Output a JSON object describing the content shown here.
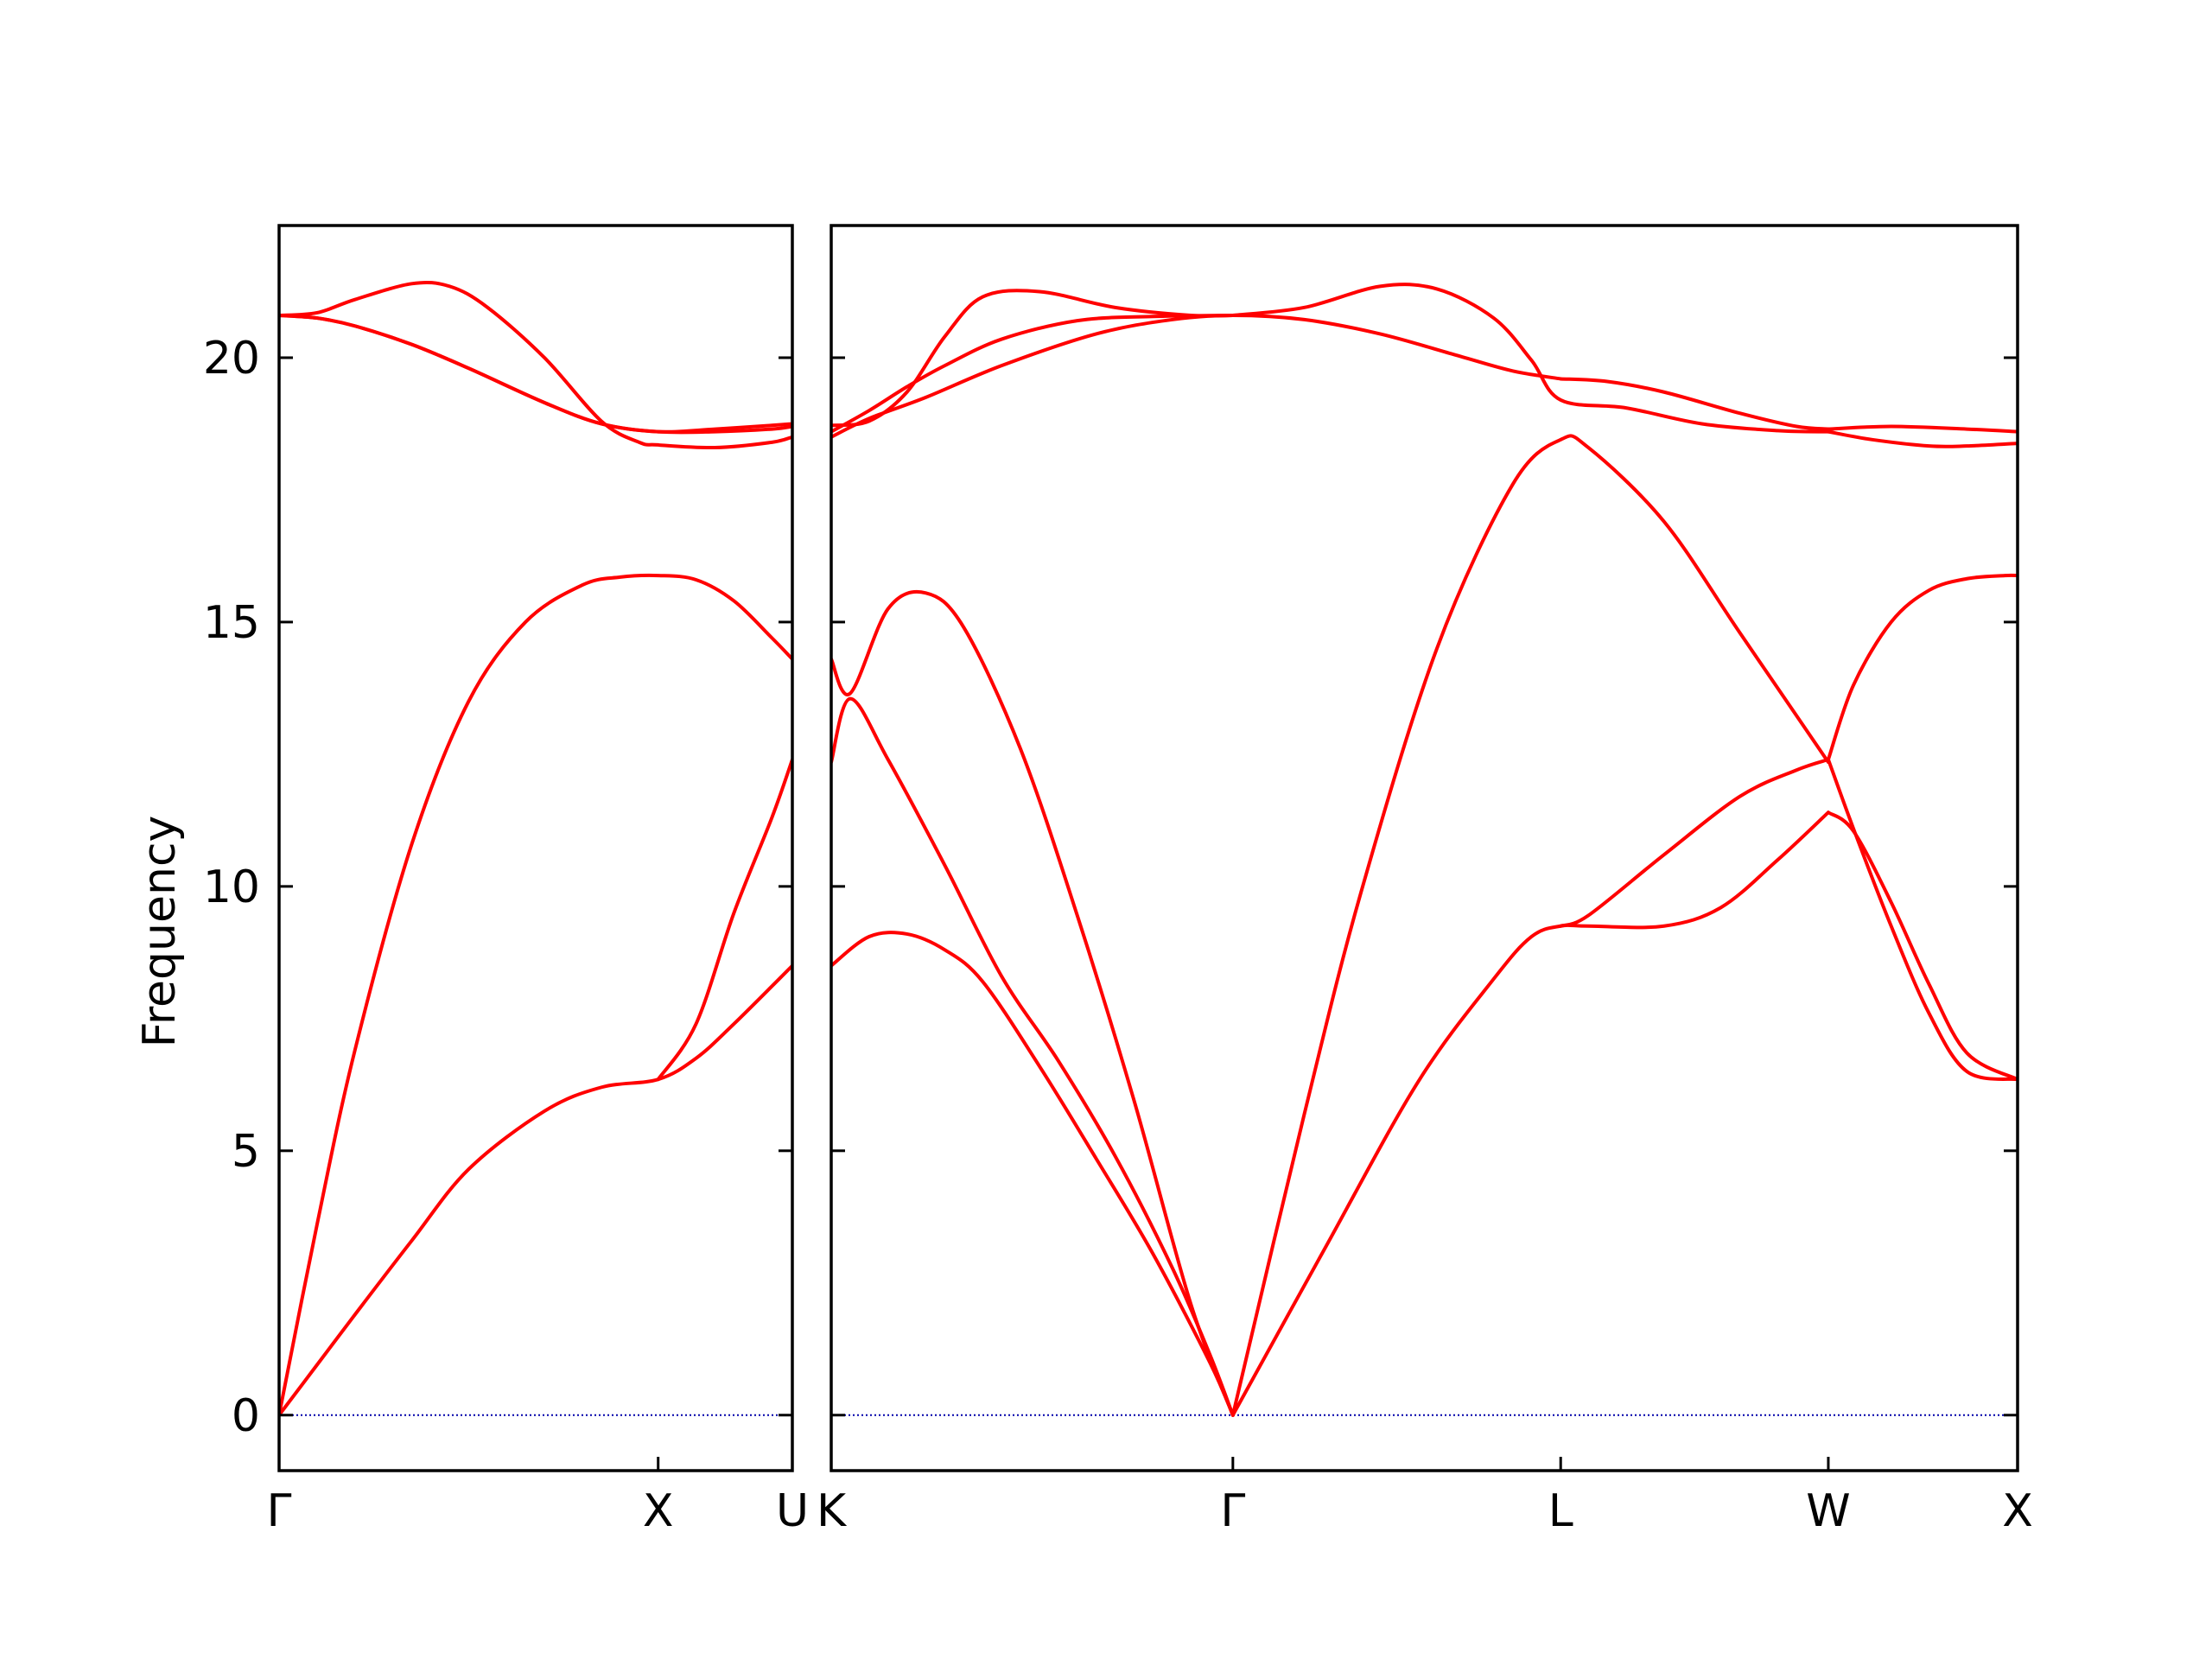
{
  "chart_data": {
    "type": "line",
    "ylabel": "Frequency",
    "ylim": [
      -1.05,
      22.5
    ],
    "yticks": [
      0,
      5,
      10,
      15,
      20
    ],
    "grid": false,
    "zero_line_color": "#0000aa",
    "series_color": "#ff0000",
    "panels": [
      {
        "xticks": [
          {
            "x": 0.0,
            "label": "Γ"
          },
          {
            "x": 1.0,
            "label": "X"
          },
          {
            "x": 1.354,
            "label": "U"
          }
        ],
        "xlim": [
          0.0,
          1.354
        ],
        "bands": [
          {
            "x": [
              0,
              0.1,
              0.2,
              0.35,
              0.5,
              0.7,
              0.85,
              1.0,
              1.1,
              1.2,
              1.354
            ],
            "y": [
              0,
              0.95,
              1.9,
              3.3,
              4.65,
              5.75,
              6.2,
              6.35,
              6.75,
              7.4,
              8.5
            ]
          },
          {
            "x": [
              0,
              0.1,
              0.2,
              0.35,
              0.5,
              0.65,
              0.8,
              0.9,
              1.0,
              1.1,
              1.2,
              1.3,
              1.354
            ],
            "y": [
              0,
              3.6,
              6.9,
              10.8,
              13.5,
              15.0,
              15.7,
              15.85,
              15.88,
              15.8,
              15.4,
              14.7,
              14.3
            ]
          },
          {
            "x": [
              1.0,
              1.1,
              1.2,
              1.3,
              1.354
            ],
            "y": [
              6.35,
              7.4,
              9.5,
              11.3,
              12.4
            ]
          },
          {
            "x": [
              0,
              0.1,
              0.2,
              0.35,
              0.5,
              0.7,
              0.85,
              1.0,
              1.15,
              1.3,
              1.354
            ],
            "y": [
              20.8,
              20.75,
              20.6,
              20.25,
              19.8,
              19.15,
              18.75,
              18.6,
              18.6,
              18.65,
              18.7
            ]
          },
          {
            "x": [
              0,
              0.1,
              0.2,
              0.35,
              0.45,
              0.55,
              0.7,
              0.85,
              0.95,
              1.0,
              1.15,
              1.3,
              1.354
            ],
            "y": [
              20.8,
              20.85,
              21.1,
              21.4,
              21.35,
              20.95,
              20.0,
              18.8,
              18.4,
              18.35,
              18.3,
              18.4,
              18.5
            ]
          },
          {
            "x": [
              0,
              0.1,
              0.2,
              0.35,
              0.5,
              0.7,
              0.85,
              1.0,
              1.15,
              1.3,
              1.354
            ],
            "y": [
              20.8,
              20.75,
              20.6,
              20.25,
              19.8,
              19.15,
              18.75,
              18.6,
              18.65,
              18.72,
              18.75
            ]
          }
        ]
      },
      {
        "xticks": [
          {
            "x": 0.0,
            "label": "K"
          },
          {
            "x": 1.061,
            "label": "Γ"
          },
          {
            "x": 1.927,
            "label": "L"
          },
          {
            "x": 2.634,
            "label": "W"
          },
          {
            "x": 3.134,
            "label": "X"
          }
        ],
        "xlim": [
          0.0,
          3.134
        ],
        "bands": [
          {
            "x": [
              0,
              0.1,
              0.2,
              0.3,
              0.4,
              0.55,
              0.7,
              0.85,
              1.0,
              1.061
            ],
            "y": [
              8.5,
              9.05,
              9.1,
              8.8,
              8.2,
              6.6,
              4.85,
              3.05,
              1.0,
              0
            ]
          },
          {
            "x": [
              0,
              0.05,
              0.15,
              0.3,
              0.45,
              0.6,
              0.75,
              0.9,
              1.0,
              1.061
            ],
            "y": [
              12.35,
              13.55,
              12.4,
              10.4,
              8.3,
              6.7,
              4.9,
              2.8,
              1.15,
              0
            ]
          },
          {
            "x": [
              0,
              0.05,
              0.15,
              0.25,
              0.35,
              0.5,
              0.65,
              0.8,
              0.95,
              1.061
            ],
            "y": [
              14.3,
              13.65,
              15.25,
              15.55,
              14.9,
              12.6,
              9.45,
              5.95,
              2.1,
              0
            ]
          },
          {
            "x": [
              1.061,
              1.3,
              1.55,
              1.75,
              1.85,
              1.927,
              2.0,
              2.2,
              2.35,
              2.5,
              2.634
            ],
            "y": [
              0,
              3.1,
              6.3,
              8.25,
              9.05,
              9.25,
              9.25,
              9.25,
              9.6,
              10.5,
              11.4
            ]
          },
          {
            "x": [
              1.061,
              1.25,
              1.4,
              1.6,
              1.8,
              1.927,
              2.0,
              2.2,
              2.4,
              2.634
            ],
            "y": [
              0,
              5.7,
              9.9,
              14.5,
              17.6,
              18.45,
              18.3,
              16.9,
              14.8,
              12.35
            ]
          },
          {
            "x": [
              1.927,
              2.0,
              2.2,
              2.4,
              2.55,
              2.634
            ],
            "y": [
              9.25,
              9.45,
              10.6,
              11.7,
              12.2,
              12.4
            ]
          },
          {
            "x": [
              2.634,
              2.7,
              2.8,
              2.9,
              3.0,
              3.134
            ],
            "y": [
              11.4,
              11.05,
              9.7,
              8.15,
              6.85,
              6.35
            ]
          },
          {
            "x": [
              2.634,
              2.7,
              2.8,
              2.9,
              3.0,
              3.134
            ],
            "y": [
              12.4,
              11.1,
              9.25,
              7.6,
              6.5,
              6.35
            ]
          },
          {
            "x": [
              2.634,
              2.7,
              2.8,
              2.9,
              3.0,
              3.1,
              3.134
            ],
            "y": [
              12.4,
              13.8,
              15.0,
              15.6,
              15.82,
              15.88,
              15.88
            ]
          },
          {
            "x": [
              0,
              0.1,
              0.25,
              0.45,
              0.7,
              0.9,
              1.061,
              1.25,
              1.45,
              1.65,
              1.8,
              1.927
            ],
            "y": [
              18.5,
              18.85,
              19.25,
              19.85,
              20.45,
              20.72,
              20.8,
              20.72,
              20.45,
              20.05,
              19.75,
              19.6
            ]
          },
          {
            "x": [
              0,
              0.1,
              0.2,
              0.3,
              0.45,
              0.65,
              0.85,
              1.061
            ],
            "y": [
              18.6,
              19.0,
              19.45,
              19.85,
              20.35,
              20.7,
              20.78,
              20.8
            ]
          },
          {
            "x": [
              0,
              0.1,
              0.2,
              0.3,
              0.4,
              0.55,
              0.75,
              0.95,
              1.061
            ],
            "y": [
              18.72,
              18.8,
              19.35,
              20.4,
              21.15,
              21.25,
              20.95,
              20.8,
              20.8
            ]
          },
          {
            "x": [
              1.061,
              1.25,
              1.45,
              1.6,
              1.75,
              1.85,
              1.927,
              2.1,
              2.3,
              2.5,
              2.634
            ],
            "y": [
              20.8,
              20.95,
              21.35,
              21.3,
              20.75,
              19.95,
              19.2,
              19.05,
              18.75,
              18.62,
              18.6
            ]
          },
          {
            "x": [
              1.927,
              2.05,
              2.2,
              2.4,
              2.55,
              2.634
            ],
            "y": [
              19.6,
              19.55,
              19.35,
              18.95,
              18.7,
              18.65
            ]
          },
          {
            "x": [
              2.634,
              2.75,
              2.9,
              3.0,
              3.134
            ],
            "y": [
              18.6,
              18.45,
              18.33,
              18.33,
              18.38
            ]
          },
          {
            "x": [
              2.634,
              2.8,
              3.0,
              3.134
            ],
            "y": [
              18.65,
              18.7,
              18.65,
              18.6
            ]
          }
        ]
      }
    ]
  }
}
